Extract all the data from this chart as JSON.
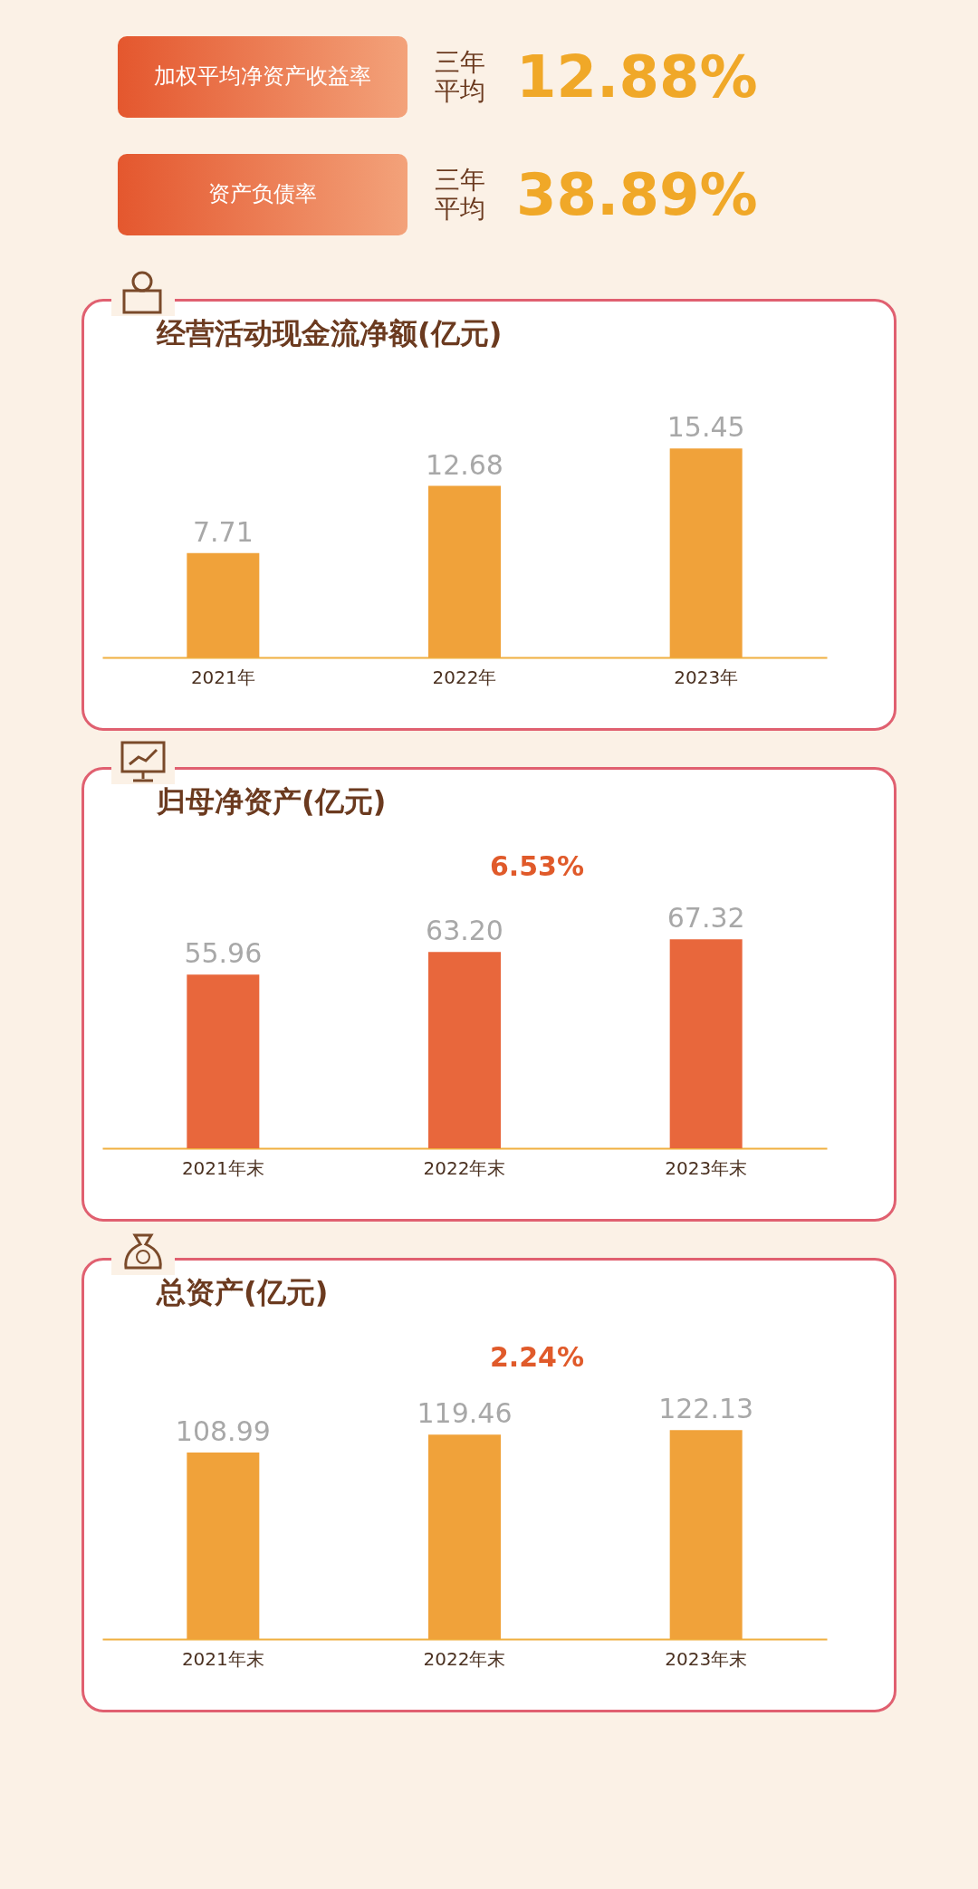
{
  "chart_data": [
    {
      "type": "other",
      "annotations": [
        "加权平均净资产收益率",
        "三年平均",
        "12.88%",
        "资产负债率",
        "三年平均",
        "38.89%"
      ]
    },
    {
      "type": "bar",
      "title": "经营活动现金流净额(亿元)",
      "categories": [
        "2021年",
        "2022年",
        "2023年"
      ],
      "values": [
        7.71,
        12.68,
        15.45
      ],
      "color": "#f0a23a",
      "data_labels": true
    },
    {
      "type": "bar",
      "title": "归母净资产(亿元)",
      "categories": [
        "2021年末",
        "2022年末",
        "2023年末"
      ],
      "values": [
        55.96,
        63.2,
        67.32
      ],
      "value_labels": [
        "55.96",
        "63.20",
        "67.32"
      ],
      "color": "#e8673c",
      "annotations": [
        "6.53%"
      ]
    },
    {
      "type": "bar",
      "title": "总资产(亿元)",
      "categories": [
        "2021年末",
        "2022年末",
        "2023年末"
      ],
      "values": [
        108.99,
        119.46,
        122.13
      ],
      "color": "#f0a23a",
      "data_labels": true,
      "annotations": [
        "2.24%"
      ]
    }
  ]
}
